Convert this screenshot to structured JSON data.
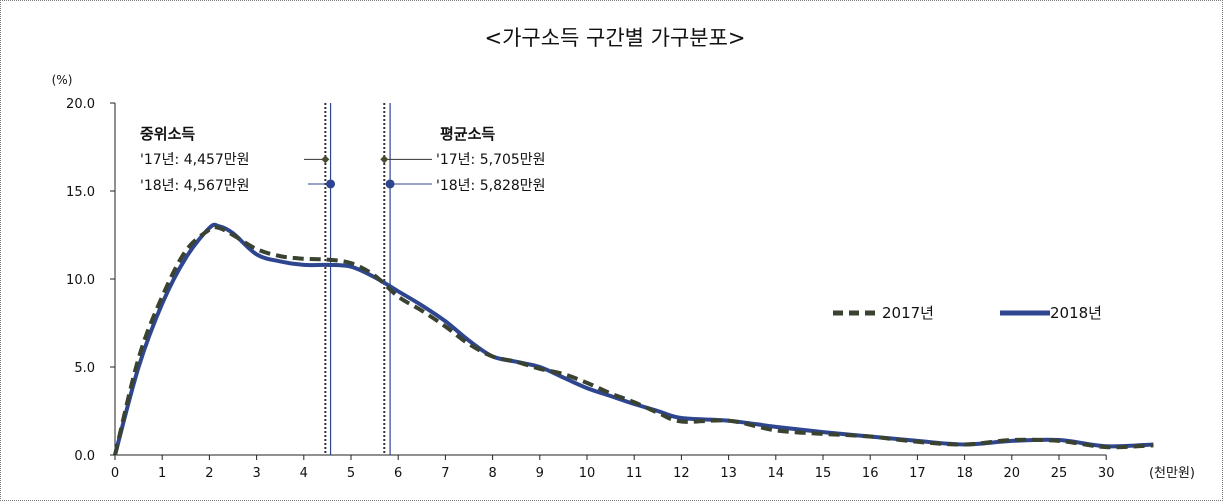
{
  "chart_data": {
    "type": "line",
    "title": "<가구소득 구간별 가구분포>",
    "ylabel": "(%)",
    "xunit": "(천만원)",
    "ylim": [
      0,
      20
    ],
    "ytick_labels": [
      "0.0",
      "5.0",
      "10.0",
      "15.0",
      "20.0"
    ],
    "yticks": [
      0,
      5,
      10,
      15,
      20
    ],
    "xtick_labels": [
      "0",
      "1",
      "2",
      "3",
      "4",
      "5",
      "6",
      "7",
      "8",
      "9",
      "10",
      "11",
      "12",
      "13",
      "14",
      "15",
      "16",
      "17",
      "18",
      "20",
      "25",
      "30"
    ],
    "legend_position": "right",
    "colors": {
      "2017": "#3a4230",
      "2018": "#2e4590",
      "median_marker_2017": "#4a4a30",
      "marker_2018": "#2e4590"
    },
    "series": [
      {
        "name": "2017년",
        "style": "dashed",
        "x": [
          0,
          0.5,
          1,
          1.5,
          2,
          2.2,
          2.5,
          3,
          3.5,
          4,
          4.5,
          5,
          5.5,
          6,
          6.5,
          7,
          7.5,
          8,
          8.5,
          9,
          9.5,
          10,
          10.5,
          11,
          11.5,
          12,
          13,
          14,
          15,
          16,
          17,
          18,
          19,
          20,
          21,
          22
        ],
        "values": [
          0,
          5.5,
          9.0,
          11.6,
          12.8,
          12.9,
          12.5,
          11.7,
          11.3,
          11.15,
          11.1,
          10.9,
          10.2,
          9.0,
          8.2,
          7.3,
          6.3,
          5.6,
          5.3,
          4.9,
          4.6,
          4.1,
          3.5,
          3.0,
          2.4,
          1.9,
          1.95,
          1.4,
          1.2,
          1.05,
          0.75,
          0.6,
          0.85,
          0.8,
          0.45,
          0.55
        ]
      },
      {
        "name": "2018년",
        "style": "solid",
        "x": [
          0,
          0.5,
          1,
          1.5,
          2,
          2.2,
          2.5,
          3,
          3.5,
          4,
          4.5,
          5,
          5.5,
          6,
          6.5,
          7,
          7.5,
          8,
          8.5,
          9,
          9.5,
          10,
          10.5,
          11,
          11.5,
          12,
          13,
          14,
          15,
          16,
          17,
          18,
          19,
          20,
          21,
          22
        ],
        "values": [
          0,
          5.0,
          8.6,
          11.2,
          12.9,
          13.0,
          12.6,
          11.4,
          11.0,
          10.8,
          10.8,
          10.7,
          10.1,
          9.3,
          8.5,
          7.6,
          6.5,
          5.6,
          5.3,
          5.0,
          4.4,
          3.8,
          3.35,
          2.9,
          2.5,
          2.1,
          1.95,
          1.6,
          1.3,
          1.05,
          0.8,
          0.6,
          0.8,
          0.85,
          0.5,
          0.6
        ]
      }
    ],
    "vlines": [
      {
        "x": 4.457,
        "style": "dotted",
        "series": "2017"
      },
      {
        "x": 4.567,
        "style": "solid",
        "series": "2018"
      },
      {
        "x": 5.705,
        "style": "dotted",
        "series": "2017"
      },
      {
        "x": 5.828,
        "style": "solid",
        "series": "2018"
      }
    ],
    "annotations": {
      "median": {
        "title": "중위소득",
        "label_2017": "'17년: 4,457만원",
        "label_2018": "'18년: 4,567만원",
        "y_2017": 16.8,
        "y_2018": 15.4
      },
      "mean": {
        "title": "평균소득",
        "label_2017": "'17년: 5,705만원",
        "label_2018": "'18년: 5,828만원",
        "y_2017": 16.8,
        "y_2018": 15.4
      }
    }
  }
}
